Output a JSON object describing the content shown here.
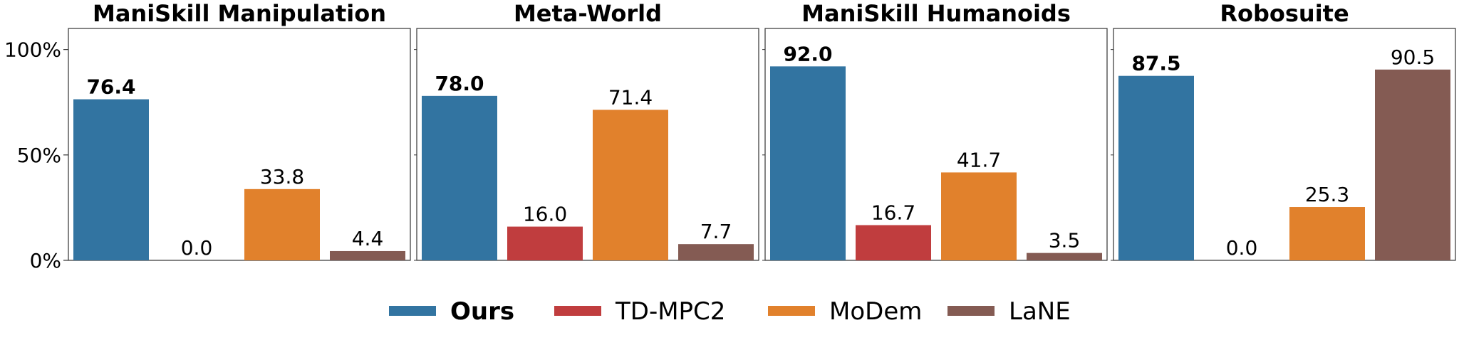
{
  "chart_data": {
    "type": "bar",
    "ylim": [
      0,
      110
    ],
    "yticks": [
      0,
      50,
      100
    ],
    "ytick_labels": [
      "0%",
      "50%",
      "100%"
    ],
    "legend_position": "bottom-center",
    "series": [
      {
        "name": "Ours",
        "color": "#3274a1",
        "bold": true
      },
      {
        "name": "TD-MPC2",
        "color": "#c03d3e",
        "bold": false
      },
      {
        "name": "MoDem",
        "color": "#e1812c",
        "bold": false
      },
      {
        "name": "LaNE",
        "color": "#845b53",
        "bold": false
      }
    ],
    "panels": [
      {
        "title": "ManiSkill Manipulation",
        "values": [
          76.4,
          0.0,
          33.8,
          4.4
        ],
        "labels": [
          "76.4",
          "0.0",
          "33.8",
          "4.4"
        ],
        "bold_index": 0
      },
      {
        "title": "Meta-World",
        "values": [
          78.0,
          16.0,
          71.4,
          7.7
        ],
        "labels": [
          "78.0",
          "16.0",
          "71.4",
          "7.7"
        ],
        "bold_index": 0
      },
      {
        "title": "ManiSkill Humanoids",
        "values": [
          92.0,
          16.7,
          41.7,
          3.5
        ],
        "labels": [
          "92.0",
          "16.7",
          "41.7",
          "3.5"
        ],
        "bold_index": 0
      },
      {
        "title": "Robosuite",
        "values": [
          87.5,
          0.0,
          25.3,
          90.5
        ],
        "labels": [
          "87.5",
          "0.0",
          "25.3",
          "90.5"
        ],
        "bold_index": 0
      }
    ]
  }
}
